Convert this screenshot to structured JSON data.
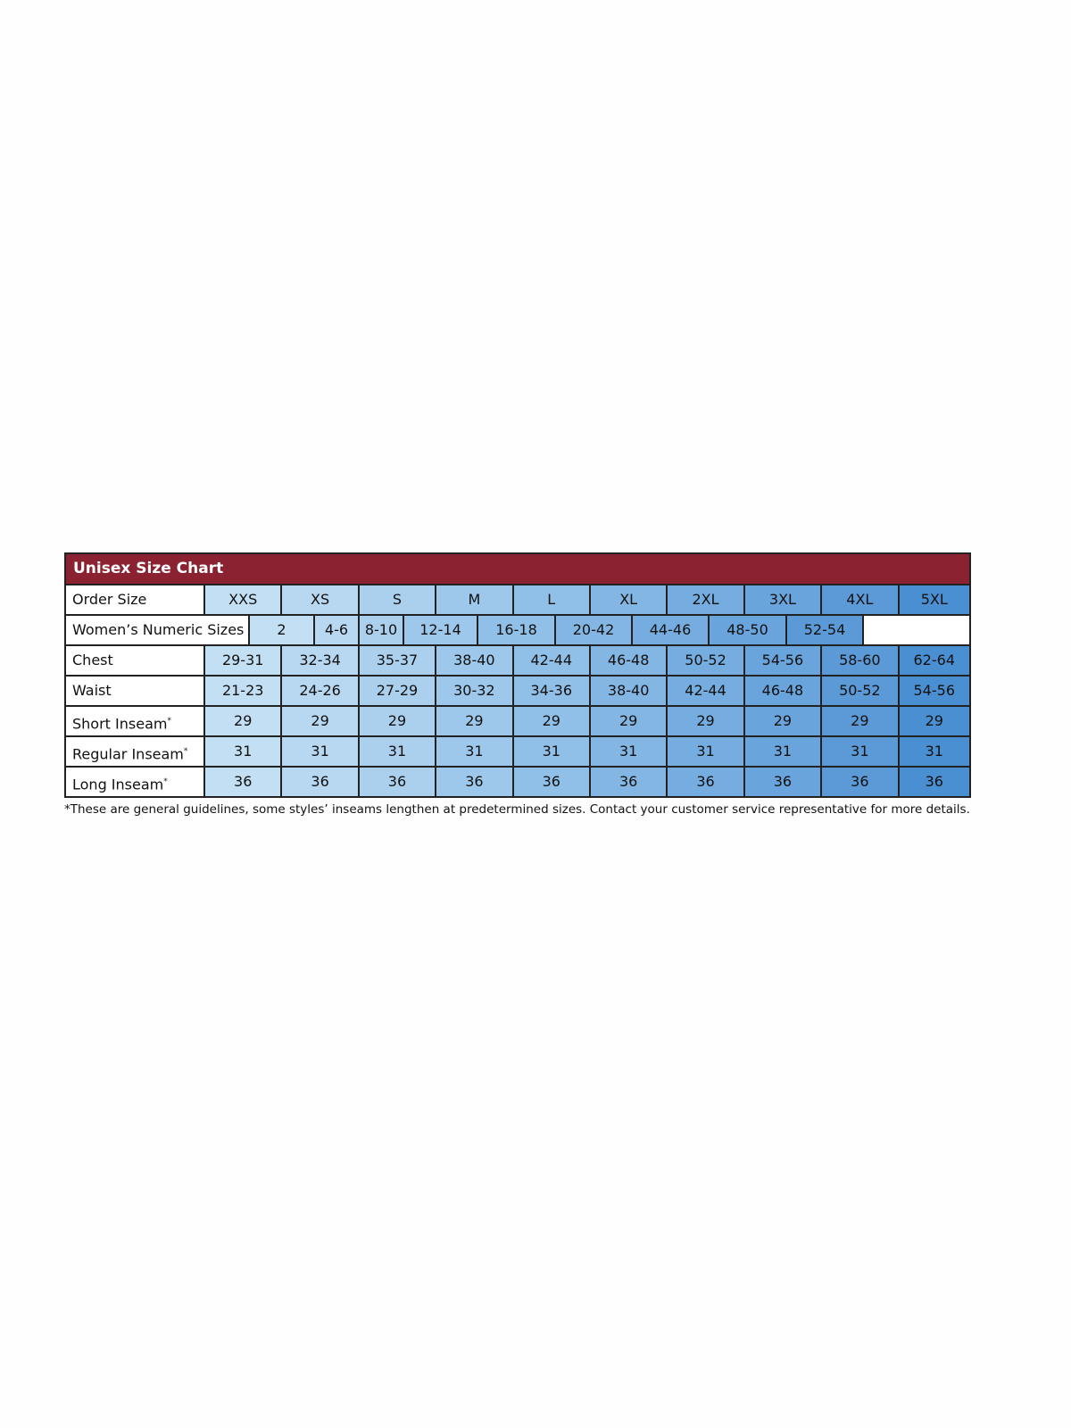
{
  "title": "Unisex Size Chart",
  "order_row": {
    "label": "Order Size",
    "values": [
      "XXS",
      "XS",
      "S",
      "M",
      "L",
      "XL",
      "2XL",
      "3XL",
      "4XL",
      "5XL"
    ]
  },
  "womens_row": {
    "label": "Women’s Numeric Sizes",
    "values": [
      "2",
      "4-6",
      "8-10",
      "12-14",
      "16-18",
      "20-42",
      "44-46",
      "48-50",
      "52-54",
      ""
    ]
  },
  "rows": [
    {
      "label": "Chest",
      "asterisk": "",
      "values": [
        "29-31",
        "32-34",
        "35-37",
        "38-40",
        "42-44",
        "46-48",
        "50-52",
        "54-56",
        "58-60",
        "62-64"
      ]
    },
    {
      "label": "Waist",
      "asterisk": "",
      "values": [
        "21-23",
        "24-26",
        "27-29",
        "30-32",
        "34-36",
        "38-40",
        "42-44",
        "46-48",
        "50-52",
        "54-56"
      ]
    },
    {
      "label": "Short Inseam",
      "asterisk": "*",
      "values": [
        "29",
        "29",
        "29",
        "29",
        "29",
        "29",
        "29",
        "29",
        "29",
        "29"
      ]
    },
    {
      "label": "Regular Inseam",
      "asterisk": "*",
      "values": [
        "31",
        "31",
        "31",
        "31",
        "31",
        "31",
        "31",
        "31",
        "31",
        "31"
      ]
    },
    {
      "label": "Long Inseam",
      "asterisk": "*",
      "values": [
        "36",
        "36",
        "36",
        "36",
        "36",
        "36",
        "36",
        "36",
        "36",
        "36"
      ]
    }
  ],
  "footnote": "*These are general guidelines, some styles’ inseams lengthen at predetermined sizes.  Contact your customer service representative for more details.",
  "colors": {
    "header": "#8a2232",
    "column_shades": [
      "#c3dff4",
      "#b8d8f1",
      "#abd0ee",
      "#9ec8eb",
      "#90bfe7",
      "#83b6e3",
      "#76ade0",
      "#69a4dc",
      "#5b9ad7",
      "#4a8fd2"
    ]
  }
}
